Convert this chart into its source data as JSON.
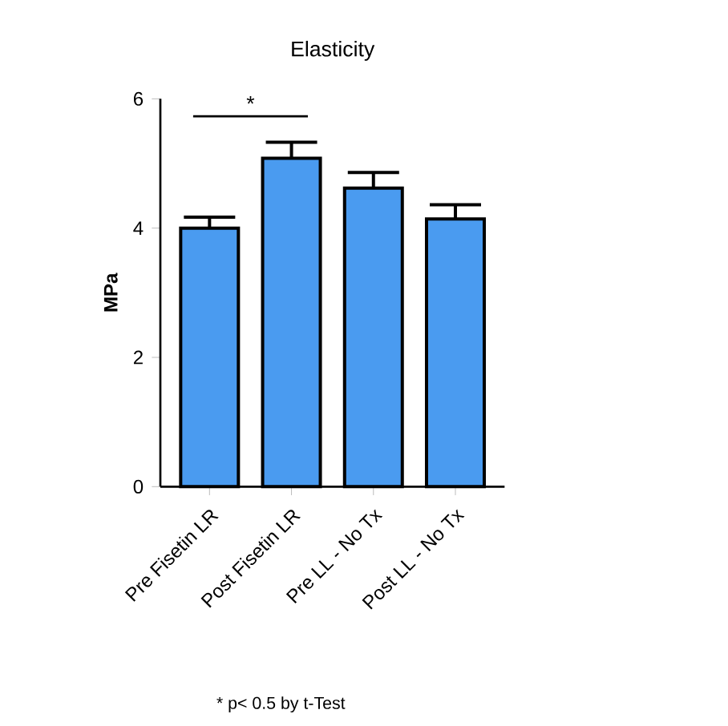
{
  "chart_data": {
    "type": "bar",
    "title": "Elasticity",
    "ylabel": "MPa",
    "categories": [
      "Pre Fisetin LR",
      "Post Fisetin LR",
      "Pre LL - No Tx",
      "Post LL - No Tx"
    ],
    "values": [
      4.0,
      5.08,
      4.62,
      4.14
    ],
    "errors": [
      0.17,
      0.25,
      0.24,
      0.22
    ],
    "color": "#4a9bf0",
    "ylim": [
      0,
      6
    ],
    "yticks": [
      0,
      2,
      4,
      6
    ],
    "grid": false,
    "annotations": [
      "*",
      "* p< 0.5 by t-Test"
    ]
  }
}
